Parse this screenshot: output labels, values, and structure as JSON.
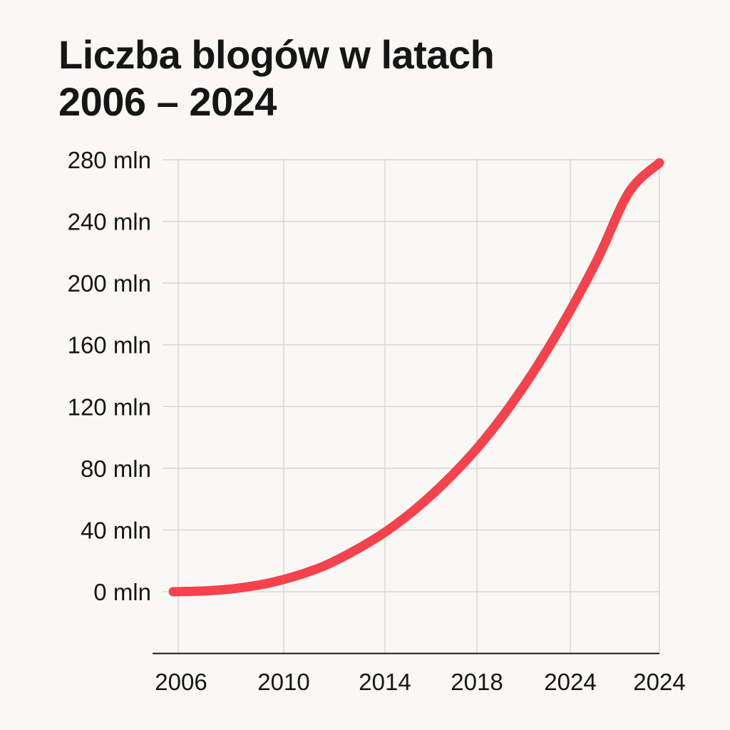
{
  "chart_data": {
    "type": "line",
    "title_lines": [
      "Liczba blogów w latach",
      "2006 – 2024"
    ],
    "xlabel": "",
    "ylabel": "",
    "x_tick_labels": [
      "2006",
      "2010",
      "2014",
      "2018",
      "2024",
      "2024"
    ],
    "y_tick_labels": [
      "0 mln",
      "40 mln",
      "80 mln",
      "120 mln",
      "160 mln",
      "200 mln",
      "240 mln",
      "280 mln"
    ],
    "y_ticks": [
      0,
      40,
      80,
      120,
      160,
      200,
      240,
      280
    ],
    "ylim": [
      -40,
      280
    ],
    "grid": true,
    "legend": "none",
    "series_color": "#f5424c",
    "series": [
      {
        "values": [
          0,
          0.5,
          2,
          5,
          10,
          17,
          27,
          39,
          54,
          72,
          93,
          118,
          147,
          180,
          217,
          259,
          278
        ]
      }
    ]
  }
}
